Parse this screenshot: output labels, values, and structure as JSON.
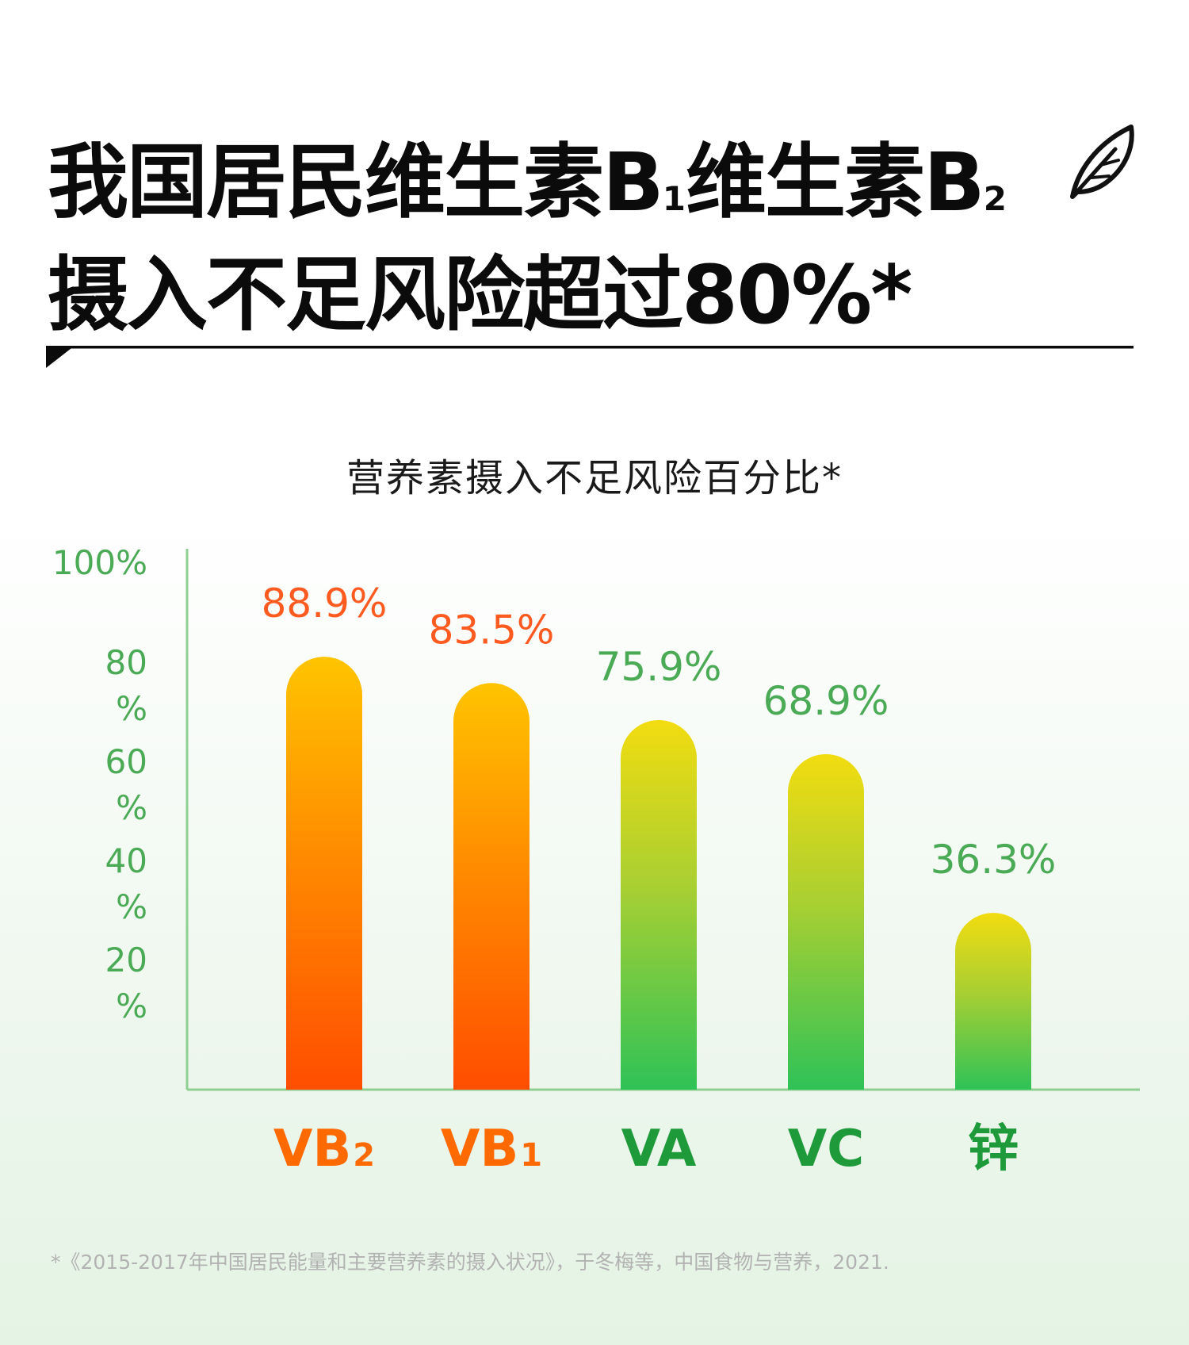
{
  "header": {
    "title_line1": {
      "a": "我国居民维生素B",
      "sub1": "1",
      "b": "维生素B",
      "sub2": "2"
    },
    "title_line2": "摄入不足风险超过80%*",
    "feather_icon": "feather-icon"
  },
  "chart_data": {
    "type": "bar",
    "title": "营养素摄入不足风险百分比*",
    "categories": [
      {
        "main": "VB",
        "sub": "2"
      },
      {
        "main": "VB",
        "sub": "1"
      },
      {
        "main": "VA",
        "sub": ""
      },
      {
        "main": "VC",
        "sub": ""
      },
      {
        "main": "锌",
        "sub": ""
      }
    ],
    "values": [
      88.9,
      83.5,
      75.9,
      68.9,
      36.3
    ],
    "data_labels": [
      "88.9%",
      "83.5%",
      "75.9%",
      "68.9%",
      "36.3%"
    ],
    "y_ticks": [
      {
        "value": 100,
        "lines": [
          "100%"
        ]
      },
      {
        "value": 80,
        "lines": [
          "80",
          "%"
        ]
      },
      {
        "value": 60,
        "lines": [
          "60",
          "%"
        ]
      },
      {
        "value": 40,
        "lines": [
          "40",
          "%"
        ]
      },
      {
        "value": 20,
        "lines": [
          "20",
          "%"
        ]
      }
    ],
    "ylim": [
      0,
      100
    ],
    "xlabel": "",
    "ylabel": "",
    "grid": false,
    "colors": {
      "orange_label": "#ff5a1f",
      "green_label": "#4aaa55",
      "orange_category": "#ff6a00",
      "green_category": "#1f9a3a",
      "axis": "#8fcf92",
      "orange_top": "#ffc400",
      "orange_bottom": "#ff4d00",
      "green_top": "#f2dc10",
      "green_bottom": "#2fc257"
    },
    "highlight": [
      true,
      true,
      false,
      false,
      false
    ]
  },
  "footnote": "*《2015-2017年中国居民能量和主要营养素的摄入状况》，于冬梅等，中国食物与营养，2021."
}
